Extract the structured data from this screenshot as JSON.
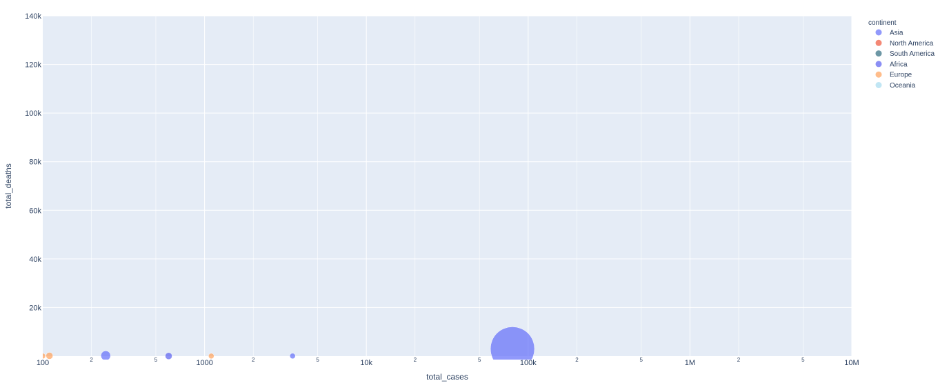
{
  "chart_data": {
    "type": "scatter",
    "xlabel": "total_cases",
    "ylabel": "total_deaths",
    "x_scale": "log",
    "xlim": [
      100,
      10000000
    ],
    "ylim": [
      0,
      140000
    ],
    "grid": true,
    "background": "#e5ecf6",
    "x_ticks": [
      {
        "value": 100,
        "label": "100",
        "major": true
      },
      {
        "value": 200,
        "label": "2",
        "major": false
      },
      {
        "value": 500,
        "label": "5",
        "major": false
      },
      {
        "value": 1000,
        "label": "1000",
        "major": true
      },
      {
        "value": 2000,
        "label": "2",
        "major": false
      },
      {
        "value": 5000,
        "label": "5",
        "major": false
      },
      {
        "value": 10000,
        "label": "10k",
        "major": true
      },
      {
        "value": 20000,
        "label": "2",
        "major": false
      },
      {
        "value": 50000,
        "label": "5",
        "major": false
      },
      {
        "value": 100000,
        "label": "100k",
        "major": true
      },
      {
        "value": 200000,
        "label": "2",
        "major": false
      },
      {
        "value": 500000,
        "label": "5",
        "major": false
      },
      {
        "value": 1000000,
        "label": "1M",
        "major": true
      },
      {
        "value": 2000000,
        "label": "2",
        "major": false
      },
      {
        "value": 5000000,
        "label": "5",
        "major": false
      },
      {
        "value": 10000000,
        "label": "10M",
        "major": true
      }
    ],
    "y_ticks": [
      {
        "value": 20000,
        "label": "20k"
      },
      {
        "value": 40000,
        "label": "40k"
      },
      {
        "value": 60000,
        "label": "60k"
      },
      {
        "value": 80000,
        "label": "80k"
      },
      {
        "value": 100000,
        "label": "100k"
      },
      {
        "value": 120000,
        "label": "120k"
      },
      {
        "value": 140000,
        "label": "140k"
      }
    ],
    "legend": {
      "title": "continent",
      "position": "top-right",
      "items": [
        {
          "name": "Asia",
          "color": "#636efa"
        },
        {
          "name": "North America",
          "color": "#ef553b"
        },
        {
          "name": "South America",
          "color": "#2f6b7f"
        },
        {
          "name": "Africa",
          "color": "#5a5ff0"
        },
        {
          "name": "Europe",
          "color": "#ffa15a"
        },
        {
          "name": "Oceania",
          "color": "#a6dcef"
        }
      ]
    },
    "series": [
      {
        "name": "Asia",
        "color": "#636efa",
        "points": [
          {
            "x": 80000,
            "y": 3000,
            "size": 32
          },
          {
            "x": 245,
            "y": 200,
            "size": 7
          },
          {
            "x": 3500,
            "y": 60,
            "size": 4
          }
        ]
      },
      {
        "name": "Europe",
        "color": "#ffa15a",
        "points": [
          {
            "x": 110,
            "y": 150,
            "size": 5
          },
          {
            "x": 1100,
            "y": 40,
            "size": 4
          },
          {
            "x": 100,
            "y": 50,
            "size": 4
          }
        ]
      },
      {
        "name": "Africa",
        "color": "#5a5ff0",
        "points": [
          {
            "x": 600,
            "y": 50,
            "size": 5
          }
        ]
      }
    ]
  }
}
